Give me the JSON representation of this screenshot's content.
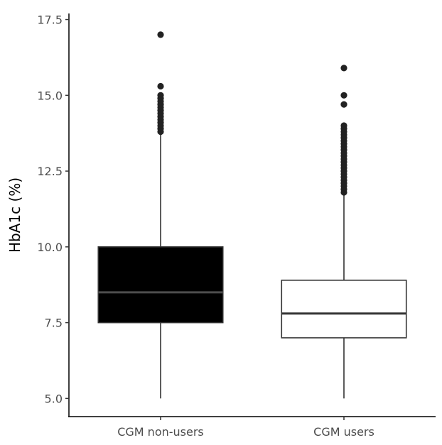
{
  "chart_data": {
    "type": "boxplot",
    "title": "",
    "xlabel": "",
    "ylabel": "HbA1c (%)",
    "ylim": [
      4.4,
      17.7
    ],
    "yticks": [
      5.0,
      7.5,
      10.0,
      12.5,
      15.0,
      17.5
    ],
    "ytick_labels": [
      "5.0",
      "7.5",
      "10.0",
      "12.5",
      "15.0",
      "17.5"
    ],
    "grid": false,
    "legend": "none",
    "categories": [
      "CGM non-users",
      "CGM users"
    ],
    "boxes": [
      {
        "category": "CGM non-users",
        "whisker_low": 5.0,
        "q1": 7.5,
        "median": 8.5,
        "q3": 10.0,
        "whisker_high": 13.8,
        "fill": "#000000",
        "median_color": "#4d4d4d",
        "outliers": [
          13.8,
          13.9,
          14.0,
          14.1,
          14.2,
          14.3,
          14.4,
          14.5,
          14.6,
          14.7,
          14.8,
          14.9,
          15.0,
          15.3,
          17.0
        ]
      },
      {
        "category": "CGM users",
        "whisker_low": 5.0,
        "q1": 7.0,
        "median": 7.8,
        "q3": 8.9,
        "whisker_high": 11.8,
        "fill": "#ffffff",
        "median_color": "#333333",
        "outliers": [
          11.8,
          11.9,
          12.0,
          12.1,
          12.2,
          12.3,
          12.4,
          12.5,
          12.6,
          12.7,
          12.8,
          12.9,
          13.0,
          13.1,
          13.2,
          13.3,
          13.4,
          13.5,
          13.6,
          13.7,
          13.8,
          13.9,
          14.0,
          14.7,
          15.0,
          15.9
        ]
      }
    ]
  }
}
